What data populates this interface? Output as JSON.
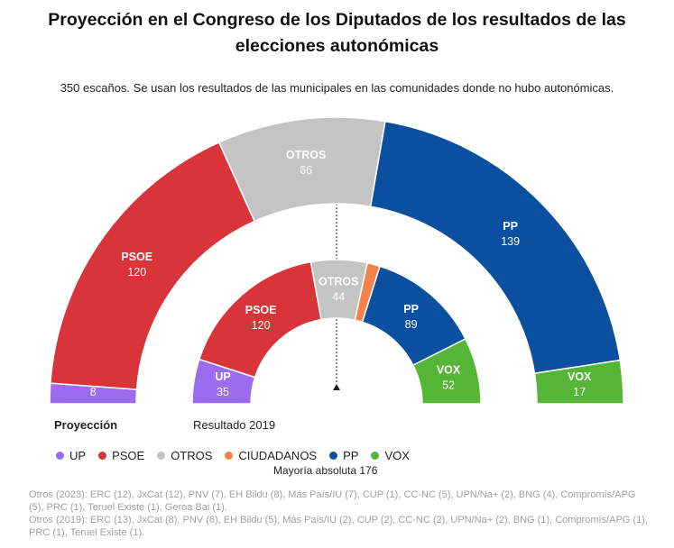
{
  "title": "Proyección en el Congreso de los Diputados de los resultados de las elecciones autonómicas",
  "subtitle": "350 escaños. Se usan los resultados de las municipales en las comunidades donde no hubo autonómicas.",
  "majority_label": "Mayoría absoluta 176",
  "notes": [
    "Otros (2023): ERC (12), JxCat (12), PNV (7), EH Bildu (8), Más País/IU (7), CUP (1), CC-NC (5), UPN/Na+ (2), BNG (4), Compromís/APG (5), PRC (1), Teruel Existe (1), Geroa Bai (1).",
    "Otros (2019): ERC (13), JxCat (8), PNV (6), EH Bildu (5), Más País/IU (2), CUP (2), CC-NC (2), UPN/Na+ (2), BNG (1), Compromís/APG (1), PRC (1), Teruel Existe (1)."
  ],
  "legend": [
    {
      "label": "UP",
      "color": "#9b6cf0"
    },
    {
      "label": "PSOE",
      "color": "#d9343a"
    },
    {
      "label": "OTROS",
      "color": "#c4c4c4"
    },
    {
      "label": "CIUDADANOS",
      "color": "#f5824a"
    },
    {
      "label": "PP",
      "color": "#0b50a0"
    },
    {
      "label": "VOX",
      "color": "#55b536"
    }
  ],
  "chart_data": [
    {
      "type": "pie",
      "variant": "half-donut",
      "title": "Proyección",
      "total": 350,
      "categories": [
        "UP",
        "PSOE",
        "OTROS",
        "CIUDADANOS",
        "PP",
        "VOX"
      ],
      "values": [
        8,
        120,
        66,
        0,
        139,
        17
      ],
      "slice_labels": [
        "UP",
        "PSOE",
        "OTROS",
        "",
        "PP",
        "VOX"
      ],
      "colors": [
        "#9b6cf0",
        "#d9343a",
        "#c4c4c4",
        "#f5824a",
        "#0b50a0",
        "#55b536"
      ]
    },
    {
      "type": "pie",
      "variant": "half-donut",
      "title": "Resultado 2019",
      "total": 350,
      "categories": [
        "UP",
        "PSOE",
        "OTROS",
        "CIUDADANOS",
        "PP",
        "VOX"
      ],
      "values": [
        35,
        120,
        44,
        10,
        89,
        52
      ],
      "slice_labels": [
        "UP",
        "PSOE",
        "OTROS",
        "",
        "PP",
        "VOX"
      ],
      "colors": [
        "#9b6cf0",
        "#d9343a",
        "#c4c4c4",
        "#f5824a",
        "#0b50a0",
        "#55b536"
      ]
    }
  ]
}
